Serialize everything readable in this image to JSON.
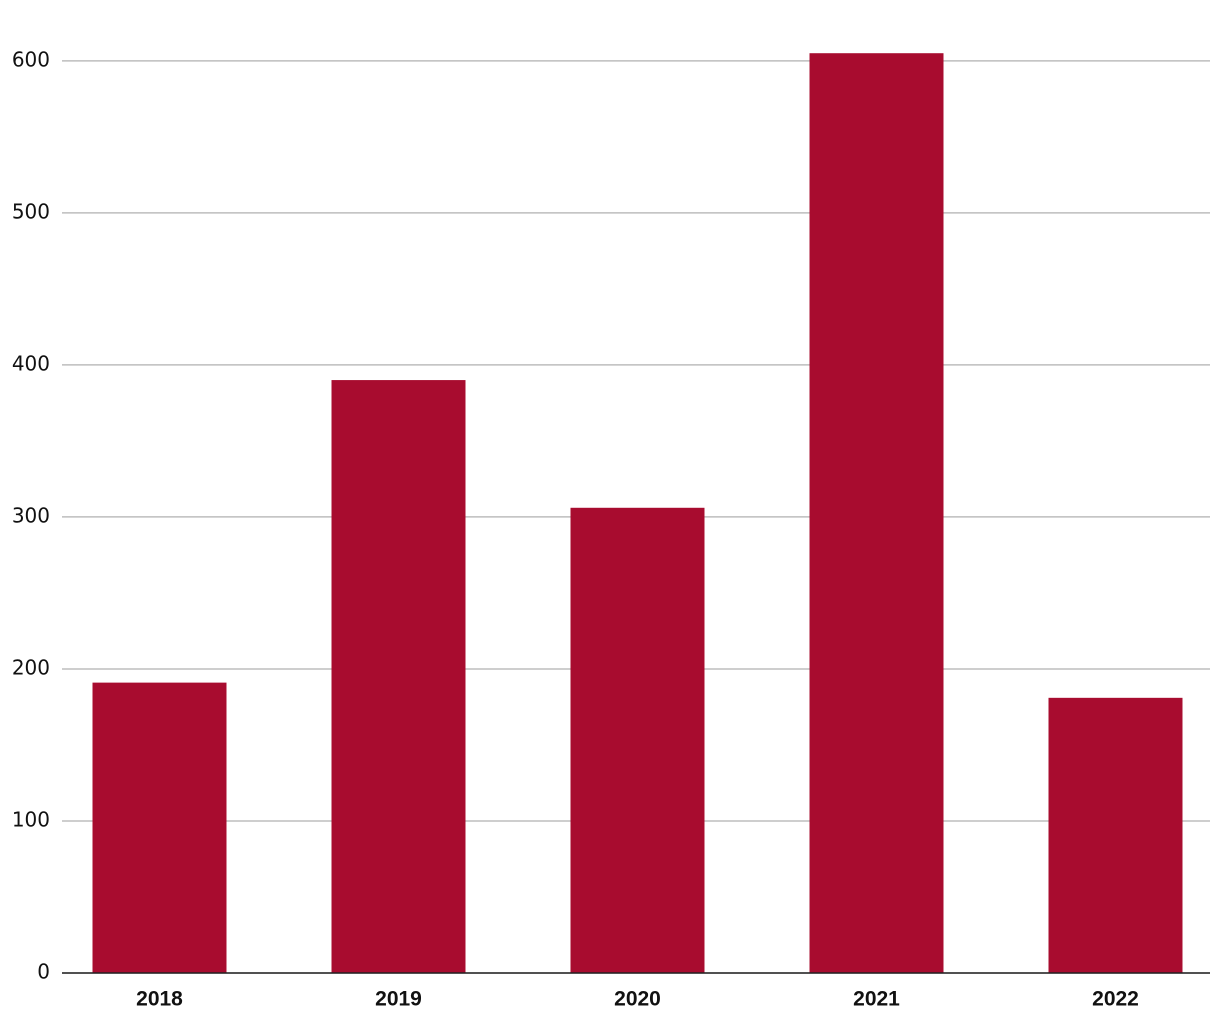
{
  "chart_data": {
    "type": "bar",
    "categories": [
      "2018",
      "2019",
      "2020",
      "2021",
      "2022"
    ],
    "values": [
      191,
      390,
      306,
      605,
      181
    ],
    "color": "#a80c2f",
    "ylim": [
      0,
      640
    ],
    "yticks": [
      0,
      100,
      200,
      300,
      400,
      500,
      600
    ],
    "grid": true
  }
}
